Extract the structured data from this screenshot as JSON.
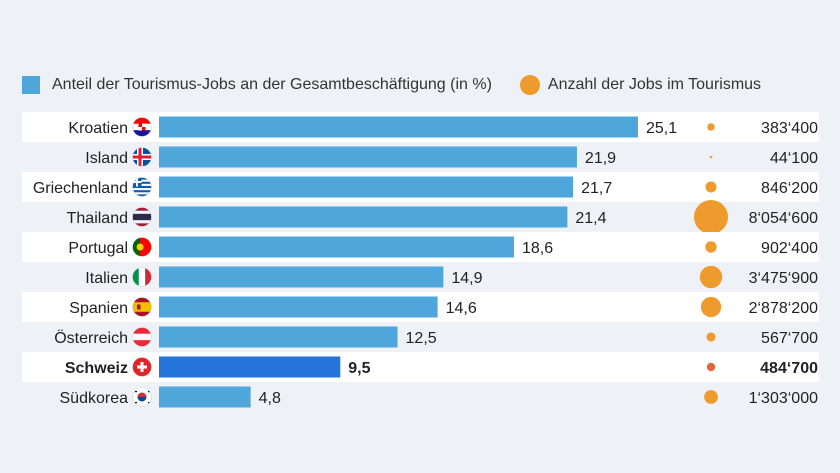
{
  "legend": {
    "bar_label": "Anteil der Tourismus-Jobs an der Gesamtbeschäftigung (in %)",
    "bubble_label": "Anzahl der Jobs im Tourismus"
  },
  "colors": {
    "bar": "#4ea6db",
    "bar_highlight": "#2474d9",
    "bubble": "#ef9a2c",
    "bubble_highlight": "#e0663a",
    "stripe": "#ffffff"
  },
  "chart_data": {
    "type": "bar",
    "orientation": "horizontal",
    "categories": [
      "Kroatien",
      "Island",
      "Griechenland",
      "Thailand",
      "Portugal",
      "Italien",
      "Spanien",
      "Österreich",
      "Schweiz",
      "Südkorea"
    ],
    "flags": [
      "croatia-flag",
      "iceland-flag",
      "greece-flag",
      "thailand-flag",
      "portugal-flag",
      "italy-flag",
      "spain-flag",
      "austria-flag",
      "switzerland-flag",
      "south-korea-flag"
    ],
    "highlight": "Schweiz",
    "series": [
      {
        "name": "Anteil der Tourismus-Jobs an der Gesamtbeschäftigung (in %)",
        "values": [
          25.1,
          21.9,
          21.7,
          21.4,
          18.6,
          14.9,
          14.6,
          12.5,
          9.5,
          4.8
        ],
        "labels": [
          "25,1",
          "21,9",
          "21,7",
          "21,4",
          "18,6",
          "14,9",
          "14,6",
          "12,5",
          "9,5",
          "4,8"
        ]
      },
      {
        "name": "Anzahl der Jobs im Tourismus",
        "values": [
          383400,
          44100,
          846200,
          8054600,
          902400,
          3475900,
          2878200,
          567700,
          484700,
          1303000
        ],
        "labels": [
          "383‘400",
          "44‘100",
          "846‘200",
          "8‘054‘600",
          "902‘400",
          "3‘475‘900",
          "2‘878‘200",
          "567‘700",
          "484‘700",
          "1‘303‘000"
        ]
      }
    ],
    "xlim": [
      0,
      25.1
    ]
  }
}
